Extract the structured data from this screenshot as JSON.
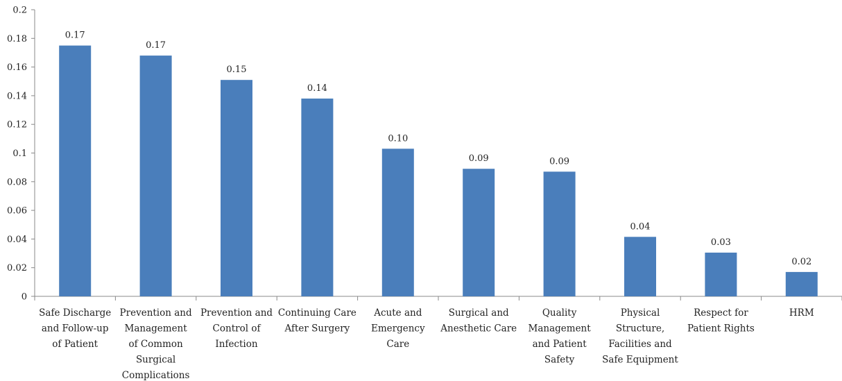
{
  "chart_data": {
    "type": "bar",
    "title": "",
    "xlabel": "",
    "ylabel": "",
    "ylim": [
      0,
      0.2
    ],
    "yticks": [
      "0",
      "0.02",
      "0.04",
      "0.06",
      "0.08",
      "0.1",
      "0.12",
      "0.14",
      "0.16",
      "0.18",
      "0.2"
    ],
    "grid": false,
    "legend": "none",
    "bar_color": "#4a7ebb",
    "categories": [
      [
        "Safe Discharge",
        "and Follow-up",
        "of Patient"
      ],
      [
        "Prevention and",
        "Management",
        "of Common",
        "Surgical",
        "Complications"
      ],
      [
        "Prevention and",
        "Control of",
        "Infection"
      ],
      [
        "Continuing Care",
        "After Surgery"
      ],
      [
        "Acute and",
        "Emergency",
        "Care"
      ],
      [
        "Surgical and",
        "Anesthetic Care"
      ],
      [
        "Quality",
        "Management",
        "and Patient",
        "Safety"
      ],
      [
        "Physical",
        "Structure,",
        "Facilities and",
        "Safe Equipment"
      ],
      [
        "Respect for",
        "Patient Rights"
      ],
      [
        "HRM"
      ]
    ],
    "values": [
      0.175,
      0.168,
      0.151,
      0.138,
      0.103,
      0.089,
      0.087,
      0.0415,
      0.0305,
      0.017
    ],
    "data_labels": [
      "0.17",
      "0.17",
      "0.15",
      "0.14",
      "0.10",
      "0.09",
      "0.09",
      "0.04",
      "0.03",
      "0.02"
    ]
  }
}
